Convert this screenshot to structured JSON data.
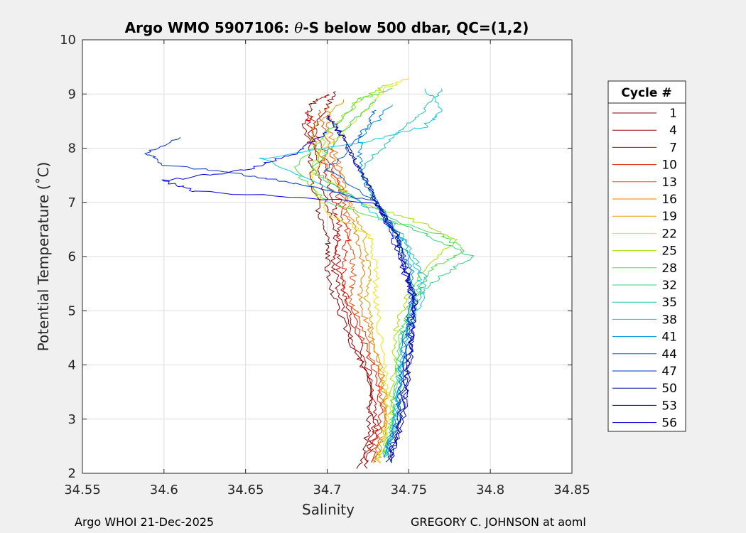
{
  "chart_data": {
    "type": "line",
    "title_main": "Argo WMO 5907106: ",
    "title_theta": "θ",
    "title_rest": "-S below 500 dbar,  QC=(1,2)",
    "xlabel": "Salinity",
    "ylabel": "Potential Temperature (˚C)",
    "xlim": [
      34.55,
      34.85
    ],
    "ylim": [
      2,
      10
    ],
    "x_ticks": [
      "34.55",
      "34.6",
      "34.65",
      "34.7",
      "34.75",
      "34.8",
      "34.85"
    ],
    "y_ticks": [
      "2",
      "3",
      "4",
      "5",
      "6",
      "7",
      "8",
      "9",
      "10"
    ],
    "grid": true,
    "legend_title": "Cycle #",
    "legend_position": "outside-right",
    "series": [
      {
        "name": "1",
        "color": "#800000",
        "s": [
          34.72,
          34.725,
          34.727,
          34.715,
          34.705,
          34.7,
          34.7,
          34.695,
          34.69,
          34.69,
          34.7,
          34.705
        ],
        "t": [
          2.1,
          2.8,
          3.6,
          4.4,
          5.2,
          5.8,
          6.3,
          6.8,
          7.6,
          8.3,
          8.8,
          9.05
        ]
      },
      {
        "name": "4",
        "color": "#a00000",
        "s": [
          34.723,
          34.728,
          34.725,
          34.715,
          34.708,
          34.703,
          34.706,
          34.7,
          34.695,
          34.685,
          34.69,
          34.7
        ],
        "t": [
          2.1,
          2.9,
          3.7,
          4.5,
          5.3,
          5.9,
          6.4,
          6.9,
          7.7,
          8.4,
          8.8,
          9.0
        ]
      },
      {
        "name": "7",
        "color": "#c80000",
        "s": [
          34.725,
          34.73,
          34.727,
          34.718,
          34.71,
          34.706,
          34.708,
          34.704,
          34.698,
          34.69,
          34.688
        ],
        "t": [
          2.2,
          2.9,
          3.7,
          4.6,
          5.3,
          6.0,
          6.5,
          7.0,
          7.7,
          8.3,
          8.7
        ]
      },
      {
        "name": "10",
        "color": "#e01a00",
        "s": [
          34.727,
          34.733,
          34.73,
          34.72,
          34.712,
          34.71,
          34.712,
          34.708,
          34.703,
          34.695,
          34.69
        ],
        "t": [
          2.2,
          3.0,
          3.8,
          4.6,
          5.2,
          5.8,
          6.4,
          7.0,
          7.6,
          8.2,
          8.6
        ]
      },
      {
        "name": "13",
        "color": "#f04800",
        "s": [
          34.728,
          34.735,
          34.732,
          34.722,
          34.715,
          34.716,
          34.714,
          34.71,
          34.706,
          34.7,
          34.695
        ],
        "t": [
          2.2,
          3.0,
          3.8,
          4.6,
          5.2,
          5.8,
          6.4,
          7.0,
          7.6,
          8.2,
          8.7
        ]
      },
      {
        "name": "16",
        "color": "#f07800",
        "s": [
          34.73,
          34.736,
          34.734,
          34.726,
          34.72,
          34.722,
          34.718,
          34.712,
          34.708,
          34.702,
          34.7
        ],
        "t": [
          2.2,
          3.0,
          3.8,
          4.6,
          5.2,
          5.8,
          6.4,
          7.0,
          7.6,
          8.2,
          8.8
        ]
      },
      {
        "name": "19",
        "color": "#e0a000",
        "s": [
          34.731,
          34.736,
          34.734,
          34.728,
          34.724,
          34.726,
          34.722,
          34.714,
          34.7,
          34.69,
          34.71
        ],
        "t": [
          2.2,
          3.0,
          3.8,
          4.6,
          5.2,
          5.8,
          6.5,
          7.0,
          7.6,
          8.3,
          8.9
        ]
      },
      {
        "name": "22",
        "color": "#f0e000",
        "s": [
          34.732,
          34.738,
          34.736,
          34.732,
          34.73,
          34.73,
          34.726,
          34.7,
          34.69,
          34.7,
          34.72,
          34.735,
          34.75
        ],
        "t": [
          2.2,
          3.0,
          3.8,
          4.6,
          5.2,
          5.8,
          6.4,
          6.8,
          7.4,
          8.0,
          8.6,
          9.1,
          9.3
        ]
      },
      {
        "name": "25",
        "color": "#a0e000",
        "s": [
          34.733,
          34.739,
          34.74,
          34.742,
          34.748,
          34.76,
          34.78,
          34.76,
          34.72,
          34.69,
          34.7,
          34.72,
          34.74
        ],
        "t": [
          2.3,
          3.0,
          3.8,
          4.6,
          5.2,
          5.8,
          6.3,
          6.6,
          7.0,
          7.6,
          8.3,
          8.9,
          9.2
        ]
      },
      {
        "name": "28",
        "color": "#48e048",
        "s": [
          34.734,
          34.74,
          34.742,
          34.745,
          34.752,
          34.765,
          34.785,
          34.77,
          34.7,
          34.68,
          34.7,
          34.72,
          34.74
        ],
        "t": [
          2.3,
          3.0,
          3.8,
          4.6,
          5.2,
          5.8,
          6.1,
          6.4,
          7.0,
          7.6,
          8.3,
          8.9,
          9.1
        ]
      },
      {
        "name": "32",
        "color": "#30d080",
        "s": [
          34.734,
          34.741,
          34.743,
          34.746,
          34.754,
          34.768,
          34.79,
          34.76,
          34.72,
          34.69,
          34.71,
          34.73
        ],
        "t": [
          2.3,
          3.0,
          3.8,
          4.6,
          5.2,
          5.6,
          6.0,
          6.4,
          7.0,
          7.6,
          8.3,
          8.9
        ]
      },
      {
        "name": "35",
        "color": "#20c0b0",
        "s": [
          34.735,
          34.742,
          34.744,
          34.748,
          34.756,
          34.76,
          34.75,
          34.73,
          34.72,
          34.74,
          34.76,
          34.77
        ],
        "t": [
          2.3,
          3.0,
          3.8,
          4.6,
          5.2,
          5.6,
          6.2,
          7.0,
          7.6,
          8.2,
          8.7,
          9.1
        ]
      },
      {
        "name": "38",
        "color": "#10c8e8",
        "s": [
          34.735,
          34.742,
          34.745,
          34.75,
          34.758,
          34.755,
          34.745,
          34.72,
          34.66,
          34.72,
          34.76,
          34.77,
          34.76
        ],
        "t": [
          2.3,
          3.0,
          3.8,
          4.6,
          5.2,
          5.8,
          6.4,
          7.0,
          7.8,
          8.1,
          8.4,
          8.7,
          9.1
        ]
      },
      {
        "name": "41",
        "color": "#0090e0",
        "s": [
          34.736,
          34.742,
          34.745,
          34.748,
          34.754,
          34.752,
          34.744,
          34.73,
          34.72,
          34.72,
          34.74
        ],
        "t": [
          2.3,
          3.0,
          3.8,
          4.6,
          5.2,
          5.8,
          6.4,
          7.0,
          7.6,
          8.2,
          8.8
        ]
      },
      {
        "name": "44",
        "color": "#0060d0",
        "s": [
          34.736,
          34.743,
          34.746,
          34.748,
          34.752,
          34.75,
          34.742,
          34.73,
          34.7,
          34.72,
          34.73
        ],
        "t": [
          2.3,
          3.0,
          3.8,
          4.6,
          5.2,
          5.8,
          6.4,
          7.0,
          7.6,
          8.2,
          8.7
        ]
      },
      {
        "name": "47",
        "color": "#0030c0",
        "s": [
          34.737,
          34.744,
          34.747,
          34.75,
          34.752,
          34.748,
          34.744,
          34.73,
          34.69,
          34.65,
          34.6,
          34.59,
          34.61
        ],
        "t": [
          2.2,
          3.0,
          3.8,
          4.6,
          5.2,
          5.8,
          6.4,
          7.0,
          7.3,
          7.5,
          7.7,
          7.9,
          8.2
        ]
      },
      {
        "name": "50",
        "color": "#0010b0",
        "s": [
          34.737,
          34.745,
          34.748,
          34.752,
          34.754,
          34.748,
          34.742,
          34.73,
          34.72,
          34.71,
          34.7
        ],
        "t": [
          2.2,
          3.0,
          3.8,
          4.6,
          5.2,
          5.8,
          6.4,
          7.0,
          7.6,
          8.2,
          8.6
        ]
      },
      {
        "name": "53",
        "color": "#000098",
        "s": [
          34.738,
          34.746,
          34.749,
          34.752,
          34.754,
          34.747,
          34.742,
          34.73,
          34.72,
          34.71,
          34.7
        ],
        "t": [
          2.2,
          3.0,
          3.8,
          4.6,
          5.2,
          5.8,
          6.4,
          7.0,
          7.6,
          8.2,
          8.6
        ]
      },
      {
        "name": "56",
        "color": "#0000e0",
        "s": [
          34.738,
          34.747,
          34.75,
          34.752,
          34.753,
          34.746,
          34.74,
          34.73,
          34.62,
          34.6,
          34.65,
          34.68,
          34.7
        ],
        "t": [
          2.2,
          3.0,
          3.8,
          4.6,
          5.2,
          5.8,
          6.4,
          7.0,
          7.2,
          7.4,
          7.6,
          7.9,
          8.3
        ]
      }
    ]
  },
  "footer": {
    "left": "Argo WHOI 21-Dec-2025",
    "right": "GREGORY C. JOHNSON at aoml"
  }
}
